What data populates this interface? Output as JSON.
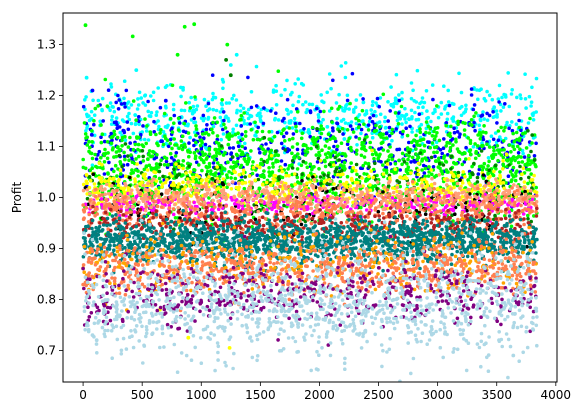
{
  "chart_data": {
    "type": "scatter",
    "title": "",
    "xlabel": "",
    "ylabel": "Profit",
    "xlim": [
      -170,
      4010
    ],
    "ylim": [
      0.638,
      1.362
    ],
    "xticks": [
      "0",
      "500",
      "1000",
      "1500",
      "2000",
      "2500",
      "3000",
      "3500",
      "4000"
    ],
    "yticks": [
      "0.7",
      "0.8",
      "0.9",
      "1.0",
      "1.1",
      "1.2",
      "1.3"
    ],
    "grid": false,
    "legend": "none",
    "x_range_of_points": [
      0,
      3840
    ],
    "series": [
      {
        "color": "#00ffff",
        "center": 1.16,
        "spread": 0.035,
        "points_per_band": 650,
        "extremes": [
          [
            30,
            1.235
          ],
          [
            1300,
            1.28
          ],
          [
            1250,
            1.26
          ],
          [
            450,
            1.25
          ]
        ]
      },
      {
        "color": "#0000ff",
        "center": 1.1,
        "spread": 0.045,
        "points_per_band": 500,
        "extremes": [
          [
            80,
            1.21
          ],
          [
            700,
            1.19
          ]
        ]
      },
      {
        "color": "#00ff00",
        "center": 1.06,
        "spread": 0.05,
        "points_per_band": 1400,
        "extremes": [
          [
            20,
            1.338
          ],
          [
            420,
            1.316
          ],
          [
            860,
            1.335
          ],
          [
            940,
            1.34
          ],
          [
            1220,
            1.3
          ],
          [
            800,
            1.28
          ]
        ]
      },
      {
        "color": "#008000",
        "center": 1.02,
        "spread": 0.04,
        "points_per_band": 250,
        "extremes": [
          [
            1250,
            1.24
          ],
          [
            1210,
            1.27
          ]
        ]
      },
      {
        "color": "#ffff00",
        "center": 1.02,
        "spread": 0.02,
        "points_per_band": 500,
        "extremes": [
          [
            1240,
            0.705
          ],
          [
            890,
            0.725
          ],
          [
            650,
            0.78
          ]
        ]
      },
      {
        "color": "#000000",
        "center": 0.98,
        "spread": 0.03,
        "points_per_band": 150,
        "extremes": []
      },
      {
        "color": "#ff00ff",
        "center": 0.985,
        "spread": 0.01,
        "points_per_band": 300,
        "extremes": []
      },
      {
        "color": "#ffa07a",
        "center": 1.0,
        "spread": 0.015,
        "points_per_band": 500,
        "extremes": []
      },
      {
        "color": "#ff7f50",
        "center": 0.975,
        "spread": 0.02,
        "points_per_band": 500,
        "extremes": []
      },
      {
        "color": "#b22222",
        "center": 0.945,
        "spread": 0.015,
        "points_per_band": 400,
        "extremes": []
      },
      {
        "color": "#008080",
        "center": 0.915,
        "spread": 0.02,
        "points_per_band": 1600,
        "extremes": []
      },
      {
        "color": "#ffa500",
        "center": 0.87,
        "spread": 0.03,
        "points_per_band": 400,
        "extremes": []
      },
      {
        "color": "#ff7f50",
        "center": 0.86,
        "spread": 0.025,
        "points_per_band": 700,
        "extremes": []
      },
      {
        "color": "#800080",
        "center": 0.81,
        "spread": 0.03,
        "points_per_band": 500,
        "extremes": []
      },
      {
        "color": "#add8e6",
        "center": 0.79,
        "spread": 0.05,
        "points_per_band": 1200,
        "extremes": [
          [
            3640,
            0.69
          ],
          [
            115,
            0.72
          ],
          [
            80,
            0.73
          ]
        ]
      }
    ]
  }
}
